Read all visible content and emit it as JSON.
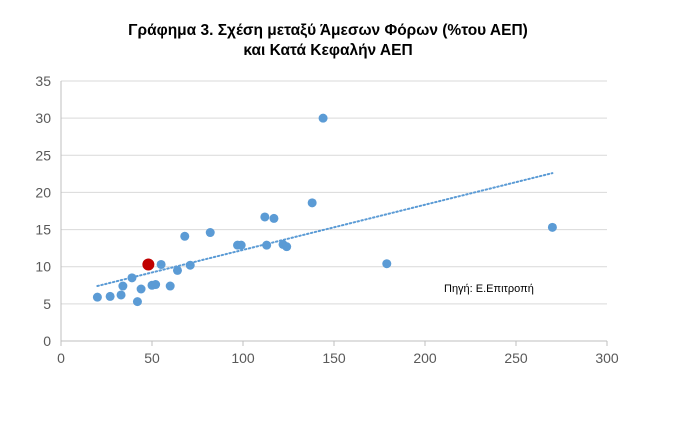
{
  "chart_data": {
    "type": "scatter",
    "title_lines": [
      "Γράφημα 3. Σχέση μεταξύ Άμεσων Φόρων (%του ΑΕΠ)",
      "και Κατά Κεφαλήν ΑΕΠ"
    ],
    "xlabel": "",
    "ylabel": "",
    "xlim": [
      0,
      300
    ],
    "ylim": [
      0,
      35
    ],
    "x_ticks": [
      0,
      50,
      100,
      150,
      200,
      250,
      300
    ],
    "y_ticks": [
      0,
      5,
      10,
      15,
      20,
      25,
      30,
      35
    ],
    "grid": "horizontal",
    "points": [
      {
        "x": 20,
        "y": 5.9
      },
      {
        "x": 27,
        "y": 6.0
      },
      {
        "x": 33,
        "y": 6.2
      },
      {
        "x": 34,
        "y": 7.4
      },
      {
        "x": 39,
        "y": 8.5
      },
      {
        "x": 42,
        "y": 5.3
      },
      {
        "x": 44,
        "y": 7.0
      },
      {
        "x": 50,
        "y": 7.5
      },
      {
        "x": 52,
        "y": 7.6
      },
      {
        "x": 55,
        "y": 10.3
      },
      {
        "x": 60,
        "y": 7.4
      },
      {
        "x": 64,
        "y": 9.5
      },
      {
        "x": 68,
        "y": 14.1
      },
      {
        "x": 71,
        "y": 10.2
      },
      {
        "x": 82,
        "y": 14.6
      },
      {
        "x": 97,
        "y": 12.9
      },
      {
        "x": 99,
        "y": 12.9
      },
      {
        "x": 112,
        "y": 16.7
      },
      {
        "x": 113,
        "y": 12.9
      },
      {
        "x": 117,
        "y": 16.5
      },
      {
        "x": 122,
        "y": 13.0
      },
      {
        "x": 124,
        "y": 12.7
      },
      {
        "x": 138,
        "y": 18.6
      },
      {
        "x": 144,
        "y": 30.0
      },
      {
        "x": 179,
        "y": 10.4
      },
      {
        "x": 270,
        "y": 15.3
      }
    ],
    "highlight_point": {
      "x": 48,
      "y": 10.3
    },
    "trendline": {
      "x": [
        20,
        270
      ],
      "y": [
        7.4,
        22.6
      ]
    },
    "annotation": "Πηγή: Ε.Επιτροπή",
    "colors": {
      "points": "#5b9bd5",
      "highlight": "#c00000",
      "trendline": "#5b9bd5",
      "grid": "#d9d9d9",
      "axis": "#bfbfbf",
      "ticks": "#595959"
    }
  }
}
